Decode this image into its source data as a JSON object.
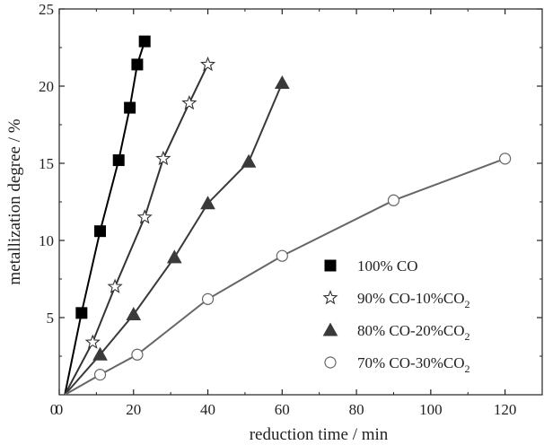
{
  "chart_data": {
    "type": "line",
    "title": "",
    "xlabel": "reduction time / min",
    "ylabel": "metallization degree / %",
    "xlim": [
      0,
      130
    ],
    "ylim": [
      0,
      25
    ],
    "xticks": [
      0,
      20,
      40,
      60,
      80,
      100,
      120
    ],
    "yticks": [
      5,
      10,
      15,
      20,
      25
    ],
    "grid": false,
    "legend_position": "lower-right",
    "series": [
      {
        "name": "100% CO",
        "legend_main": "100% CO",
        "legend_sub": "",
        "legend_tail": "",
        "marker": "square",
        "color": "#000000",
        "x": [
          1.5,
          6,
          11,
          16,
          19,
          21,
          23
        ],
        "y": [
          0,
          5.3,
          10.6,
          15.2,
          18.6,
          21.4,
          22.9
        ]
      },
      {
        "name": "90% CO-10%CO2",
        "legend_main": "90% CO-10%CO",
        "legend_sub": "2",
        "legend_tail": "",
        "marker": "star",
        "color": "#333333",
        "x": [
          1.5,
          9,
          15,
          23,
          28,
          35,
          40
        ],
        "y": [
          0,
          3.4,
          7,
          11.5,
          15.3,
          18.9,
          21.4
        ]
      },
      {
        "name": "80% CO-20%CO2",
        "legend_main": "80% CO-20%CO",
        "legend_sub": "2",
        "legend_tail": "",
        "marker": "triangle",
        "color": "#3a3a3a",
        "x": [
          1.5,
          11,
          20,
          31,
          40,
          51,
          60
        ],
        "y": [
          0,
          2.6,
          5.2,
          8.9,
          12.4,
          15.1,
          20.2
        ]
      },
      {
        "name": "70% CO-30%CO2",
        "legend_main": "70% CO-30%CO",
        "legend_sub": "2",
        "legend_tail": "",
        "marker": "circle",
        "color": "#666666",
        "x": [
          1.5,
          11,
          21,
          40,
          60,
          90,
          120
        ],
        "y": [
          0,
          1.3,
          2.6,
          6.2,
          9.0,
          12.6,
          15.3
        ]
      }
    ]
  }
}
